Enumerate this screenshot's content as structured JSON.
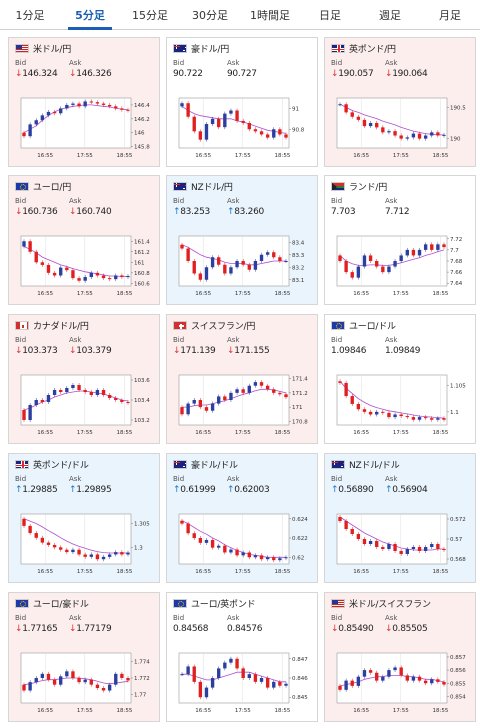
{
  "tabs": [
    {
      "label": "1分足",
      "active": false
    },
    {
      "label": "5分足",
      "active": true
    },
    {
      "label": "15分足",
      "active": false
    },
    {
      "label": "30分足",
      "active": false
    },
    {
      "label": "1時間足",
      "active": false
    },
    {
      "label": "日足",
      "active": false
    },
    {
      "label": "週足",
      "active": false
    },
    {
      "label": "月足",
      "active": false
    }
  ],
  "bid_label": "Bid",
  "ask_label": "Ask",
  "colors": {
    "up": "#1b78c7",
    "down": "#d33333",
    "candle_up": "#2a3f9e",
    "candle_down": "#e02020",
    "ma": "#b04dd0"
  },
  "pairs": [
    {
      "name": "米ドル/円",
      "flag": "us-flag-icon",
      "trend": "down",
      "bid": "146.324",
      "ask": "146.326",
      "bid_arrow": "↓",
      "ask_arrow": "↓",
      "x_ticks": [
        "16:55",
        "17:55",
        "18:55"
      ],
      "y_ticks": [
        "146.4",
        "146.2",
        "146",
        "145.8"
      ],
      "y_tick_values": [
        146.4,
        146.2,
        146.0,
        145.8
      ],
      "y_range": [
        145.78,
        146.5
      ],
      "close": [
        145.95,
        146.12,
        146.18,
        146.25,
        146.3,
        146.28,
        146.35,
        146.4,
        146.42,
        146.38,
        146.45,
        146.44,
        146.42,
        146.4,
        146.38,
        146.35,
        146.33,
        146.32
      ],
      "ma": [
        146.0,
        146.05,
        146.1,
        146.18,
        146.25,
        146.3,
        146.34,
        146.36,
        146.38,
        146.39,
        146.4,
        146.4,
        146.39,
        146.38,
        146.37,
        146.35,
        146.34,
        146.33
      ]
    },
    {
      "name": "豪ドル/円",
      "flag": "au-flag-icon",
      "trend": "flat",
      "bid": "90.722",
      "ask": "90.727",
      "bid_arrow": "",
      "ask_arrow": "",
      "x_ticks": [
        "16:55",
        "17:55",
        "18:55"
      ],
      "y_ticks": [
        "91",
        "90.8"
      ],
      "y_tick_values": [
        91.0,
        90.8
      ],
      "y_range": [
        90.62,
        91.1
      ],
      "close": [
        91.05,
        90.92,
        90.78,
        90.7,
        90.85,
        90.9,
        90.82,
        90.95,
        90.98,
        90.88,
        90.86,
        90.8,
        90.78,
        90.75,
        90.72,
        90.8,
        90.75,
        90.72
      ],
      "ma": [
        91.02,
        90.98,
        90.95,
        90.93,
        90.92,
        90.91,
        90.9,
        90.9,
        90.9,
        90.88,
        90.87,
        90.85,
        90.83,
        90.81,
        90.79,
        90.78,
        90.77,
        90.76
      ]
    },
    {
      "name": "英ポンド/円",
      "flag": "uk-flag-icon",
      "trend": "down",
      "bid": "190.057",
      "ask": "190.064",
      "bid_arrow": "↓",
      "ask_arrow": "↓",
      "x_ticks": [
        "16:55",
        "17:55",
        "18:55"
      ],
      "y_ticks": [
        "190.5",
        "190"
      ],
      "y_tick_values": [
        190.5,
        190.0
      ],
      "y_range": [
        189.85,
        190.65
      ],
      "close": [
        190.55,
        190.42,
        190.35,
        190.3,
        190.2,
        190.25,
        190.18,
        190.1,
        190.12,
        190.05,
        190.0,
        190.02,
        190.08,
        190.0,
        190.05,
        190.1,
        190.05,
        190.06
      ],
      "ma": [
        190.55,
        190.5,
        190.45,
        190.42,
        190.38,
        190.35,
        190.32,
        190.28,
        190.25,
        190.22,
        190.18,
        190.15,
        190.12,
        190.1,
        190.08,
        190.07,
        190.06,
        190.06
      ]
    },
    {
      "name": "ユーロ/円",
      "flag": "eu-flag-icon",
      "trend": "down",
      "bid": "160.736",
      "ask": "160.740",
      "bid_arrow": "↓",
      "ask_arrow": "↓",
      "x_ticks": [
        "16:55",
        "17:55",
        "18:55"
      ],
      "y_ticks": [
        "161.4",
        "161.2",
        "161",
        "160.8",
        "160.6"
      ],
      "y_tick_values": [
        161.4,
        161.2,
        161.0,
        160.8,
        160.6
      ],
      "y_range": [
        160.55,
        161.5
      ],
      "close": [
        161.4,
        161.2,
        161.0,
        160.95,
        160.8,
        160.75,
        160.9,
        160.85,
        160.7,
        160.65,
        160.72,
        160.8,
        160.75,
        160.7,
        160.68,
        160.75,
        160.72,
        160.74
      ],
      "ma": [
        161.3,
        161.25,
        161.18,
        161.1,
        161.05,
        161.0,
        160.95,
        160.92,
        160.88,
        160.85,
        160.82,
        160.8,
        160.78,
        160.76,
        160.74,
        160.74,
        160.73,
        160.73
      ]
    },
    {
      "name": "NZドル/円",
      "flag": "nz-flag-icon",
      "trend": "up",
      "bid": "83.253",
      "ask": "83.260",
      "bid_arrow": "↑",
      "ask_arrow": "↑",
      "x_ticks": [
        "16:55",
        "17:55",
        "18:55"
      ],
      "y_ticks": [
        "83.4",
        "83.3",
        "83.2",
        "83.1"
      ],
      "y_tick_values": [
        83.4,
        83.3,
        83.2,
        83.1
      ],
      "y_range": [
        83.05,
        83.45
      ],
      "close": [
        83.35,
        83.25,
        83.15,
        83.1,
        83.2,
        83.28,
        83.22,
        83.15,
        83.2,
        83.25,
        83.22,
        83.18,
        83.25,
        83.3,
        83.32,
        83.28,
        83.25,
        83.25
      ],
      "ma": [
        83.38,
        83.36,
        83.33,
        83.3,
        83.28,
        83.27,
        83.26,
        83.24,
        83.23,
        83.23,
        83.23,
        83.22,
        83.22,
        83.23,
        83.24,
        83.25,
        83.25,
        83.25
      ]
    },
    {
      "name": "ランド/円",
      "flag": "za-flag-icon",
      "trend": "flat",
      "bid": "7.703",
      "ask": "7.712",
      "bid_arrow": "",
      "ask_arrow": "",
      "x_ticks": [
        "16:55",
        "17:55",
        "18:55"
      ],
      "y_ticks": [
        "7.72",
        "7.7",
        "7.68",
        "7.66",
        "7.64"
      ],
      "y_tick_values": [
        7.72,
        7.7,
        7.68,
        7.66,
        7.64
      ],
      "y_range": [
        7.635,
        7.725
      ],
      "close": [
        7.68,
        7.66,
        7.65,
        7.67,
        7.69,
        7.68,
        7.67,
        7.66,
        7.67,
        7.68,
        7.69,
        7.7,
        7.69,
        7.7,
        7.71,
        7.7,
        7.71,
        7.705
      ],
      "ma": [
        7.69,
        7.68,
        7.675,
        7.672,
        7.672,
        7.673,
        7.673,
        7.672,
        7.672,
        7.674,
        7.677,
        7.68,
        7.683,
        7.686,
        7.69,
        7.693,
        7.697,
        7.7
      ]
    },
    {
      "name": "カナダドル/円",
      "flag": "ca-flag-icon",
      "trend": "down",
      "bid": "103.373",
      "ask": "103.379",
      "bid_arrow": "↓",
      "ask_arrow": "↓",
      "x_ticks": [
        "16:55",
        "17:55",
        "18:55"
      ],
      "y_ticks": [
        "103.6",
        "103.4",
        "103.2"
      ],
      "y_tick_values": [
        103.6,
        103.4,
        103.2
      ],
      "y_range": [
        103.15,
        103.65
      ],
      "close": [
        103.2,
        103.35,
        103.4,
        103.38,
        103.45,
        103.5,
        103.48,
        103.52,
        103.55,
        103.5,
        103.48,
        103.45,
        103.5,
        103.45,
        103.42,
        103.4,
        103.38,
        103.37
      ],
      "ma": [
        103.3,
        103.32,
        103.35,
        103.38,
        103.4,
        103.43,
        103.45,
        103.47,
        103.48,
        103.49,
        103.49,
        103.48,
        103.47,
        103.46,
        103.44,
        103.42,
        103.4,
        103.39
      ]
    },
    {
      "name": "スイスフラン/円",
      "flag": "ch-flag-icon",
      "trend": "down",
      "bid": "171.139",
      "ask": "171.155",
      "bid_arrow": "↓",
      "ask_arrow": "↓",
      "x_ticks": [
        "16:55",
        "17:55",
        "18:55"
      ],
      "y_ticks": [
        "171.4",
        "171.2",
        "171",
        "170.8"
      ],
      "y_tick_values": [
        171.4,
        171.2,
        171.0,
        170.8
      ],
      "y_range": [
        170.75,
        171.45
      ],
      "close": [
        170.9,
        171.05,
        171.1,
        171.0,
        170.95,
        171.05,
        171.15,
        171.1,
        171.2,
        171.25,
        171.2,
        171.3,
        171.35,
        171.3,
        171.25,
        171.2,
        171.18,
        171.14
      ],
      "ma": [
        171.0,
        171.0,
        171.02,
        171.03,
        171.03,
        171.05,
        171.07,
        171.09,
        171.12,
        171.15,
        171.18,
        171.2,
        171.23,
        171.25,
        171.25,
        171.24,
        171.22,
        171.2
      ]
    },
    {
      "name": "ユーロ/ドル",
      "flag": "eu-flag-icon",
      "trend": "flat",
      "bid": "1.09846",
      "ask": "1.09849",
      "bid_arrow": "",
      "ask_arrow": "",
      "x_ticks": [
        "16:55",
        "17:55",
        "18:55"
      ],
      "y_ticks": [
        "1.105",
        "1.1"
      ],
      "y_tick_values": [
        1.105,
        1.1
      ],
      "y_range": [
        1.0975,
        1.107
      ],
      "close": [
        1.1055,
        1.103,
        1.1015,
        1.1005,
        1.1,
        1.0995,
        1.1,
        1.0998,
        1.099,
        1.0995,
        1.0992,
        1.099,
        1.0985,
        1.099,
        1.0988,
        1.0985,
        1.0988,
        1.0985
      ],
      "ma": [
        1.1058,
        1.1045,
        1.1035,
        1.1025,
        1.1018,
        1.1012,
        1.1008,
        1.1005,
        1.1002,
        1.1,
        1.0998,
        1.0996,
        1.0994,
        1.0992,
        1.0991,
        1.099,
        1.0989,
        1.0988
      ]
    },
    {
      "name": "英ポンド/ドル",
      "flag": "uk-flag-icon",
      "trend": "up",
      "bid": "1.29885",
      "ask": "1.29895",
      "bid_arrow": "↑",
      "ask_arrow": "↑",
      "x_ticks": [
        "16:55",
        "17:55",
        "18:55"
      ],
      "y_ticks": [
        "1.305",
        "1.3"
      ],
      "y_tick_values": [
        1.305,
        1.3
      ],
      "y_range": [
        1.2965,
        1.307
      ],
      "close": [
        1.3045,
        1.303,
        1.302,
        1.301,
        1.3005,
        1.3,
        1.2995,
        1.299,
        1.2995,
        1.2985,
        1.298,
        1.2985,
        1.2975,
        1.298,
        1.2985,
        1.299,
        1.2985,
        1.2989
      ],
      "ma": [
        1.306,
        1.3055,
        1.305,
        1.3043,
        1.3035,
        1.3028,
        1.302,
        1.3013,
        1.3007,
        1.3002,
        1.2998,
        1.2994,
        1.2991,
        1.2989,
        1.2988,
        1.2988,
        1.2988,
        1.2988
      ]
    },
    {
      "name": "豪ドル/ドル",
      "flag": "au-flag-icon",
      "trend": "up",
      "bid": "0.61999",
      "ask": "0.62003",
      "bid_arrow": "↑",
      "ask_arrow": "↑",
      "x_ticks": [
        "16:55",
        "17:55",
        "18:55"
      ],
      "y_ticks": [
        "0.624",
        "0.622",
        "0.62"
      ],
      "y_tick_values": [
        0.624,
        0.622,
        0.62
      ],
      "y_range": [
        0.6193,
        0.6245
      ],
      "close": [
        0.6235,
        0.6225,
        0.622,
        0.6215,
        0.6218,
        0.621,
        0.6212,
        0.6205,
        0.6208,
        0.6202,
        0.6205,
        0.62,
        0.6202,
        0.6198,
        0.62,
        0.6197,
        0.6199,
        0.62
      ],
      "ma": [
        0.6238,
        0.6235,
        0.6231,
        0.6227,
        0.6224,
        0.622,
        0.6217,
        0.6213,
        0.621,
        0.6207,
        0.6205,
        0.6203,
        0.6202,
        0.6201,
        0.62,
        0.62,
        0.62,
        0.62
      ]
    },
    {
      "name": "NZドル/ドル",
      "flag": "nz-flag-icon",
      "trend": "up",
      "bid": "0.56890",
      "ask": "0.56904",
      "bid_arrow": "↑",
      "ask_arrow": "↑",
      "x_ticks": [
        "16:55",
        "17:55",
        "18:55"
      ],
      "y_ticks": [
        "0.572",
        "0.57",
        "0.568"
      ],
      "y_tick_values": [
        0.572,
        0.57,
        0.568
      ],
      "y_range": [
        0.5675,
        0.5725
      ],
      "close": [
        0.5718,
        0.571,
        0.5705,
        0.57,
        0.5695,
        0.5698,
        0.5692,
        0.569,
        0.5695,
        0.5688,
        0.5685,
        0.569,
        0.5692,
        0.5688,
        0.5692,
        0.5695,
        0.569,
        0.5689
      ],
      "ma": [
        0.5722,
        0.5718,
        0.5714,
        0.571,
        0.5706,
        0.5703,
        0.57,
        0.5697,
        0.5695,
        0.5693,
        0.5691,
        0.569,
        0.5689,
        0.5689,
        0.5689,
        0.5689,
        0.569,
        0.569
      ]
    },
    {
      "name": "ユーロ/豪ドル",
      "flag": "eu-flag-icon",
      "trend": "down",
      "bid": "1.77165",
      "ask": "1.77179",
      "bid_arrow": "↓",
      "ask_arrow": "↓",
      "x_ticks": [
        "16:55",
        "17:55",
        "18:55"
      ],
      "y_ticks": [
        "1.774",
        "1.772",
        "1.77"
      ],
      "y_tick_values": [
        1.774,
        1.772,
        1.77
      ],
      "y_range": [
        1.769,
        1.775
      ],
      "close": [
        1.7705,
        1.7715,
        1.772,
        1.7725,
        1.7718,
        1.7712,
        1.7722,
        1.7728,
        1.772,
        1.7715,
        1.7718,
        1.7712,
        1.7708,
        1.7705,
        1.7712,
        1.7725,
        1.772,
        1.7717
      ],
      "ma": [
        1.7712,
        1.7713,
        1.7715,
        1.7717,
        1.7718,
        1.7718,
        1.7719,
        1.772,
        1.772,
        1.772,
        1.7719,
        1.7718,
        1.7716,
        1.7714,
        1.7713,
        1.7714,
        1.7715,
        1.7716
      ]
    },
    {
      "name": "ユーロ/英ポンド",
      "flag": "eu-flag-icon",
      "trend": "flat",
      "bid": "0.84568",
      "ask": "0.84576",
      "bid_arrow": "",
      "ask_arrow": "",
      "x_ticks": [
        "16:55",
        "17:55",
        "18:55"
      ],
      "y_ticks": [
        "0.847",
        "0.846",
        "0.845"
      ],
      "y_tick_values": [
        0.847,
        0.846,
        0.845
      ],
      "y_range": [
        0.8447,
        0.8473
      ],
      "close": [
        0.8462,
        0.8466,
        0.8458,
        0.845,
        0.8455,
        0.846,
        0.8465,
        0.8468,
        0.847,
        0.8465,
        0.846,
        0.8462,
        0.8458,
        0.846,
        0.8455,
        0.8458,
        0.8456,
        0.8457
      ],
      "ma": [
        0.8462,
        0.8462,
        0.8461,
        0.846,
        0.8459,
        0.8459,
        0.846,
        0.8461,
        0.8462,
        0.8463,
        0.8463,
        0.8463,
        0.8462,
        0.8461,
        0.846,
        0.8459,
        0.8458,
        0.8458
      ]
    },
    {
      "name": "米ドル/スイスフラン",
      "flag": "us-flag-icon",
      "trend": "down",
      "bid": "0.85490",
      "ask": "0.85505",
      "bid_arrow": "↓",
      "ask_arrow": "↓",
      "x_ticks": [
        "16:55",
        "17:55",
        "18:55"
      ],
      "y_ticks": [
        "0.857",
        "0.856",
        "0.855",
        "0.854"
      ],
      "y_tick_values": [
        0.857,
        0.856,
        0.855,
        0.854
      ],
      "y_range": [
        0.8535,
        0.8573
      ],
      "close": [
        0.8545,
        0.8552,
        0.8548,
        0.8555,
        0.856,
        0.8558,
        0.8552,
        0.8555,
        0.856,
        0.8562,
        0.8556,
        0.8552,
        0.8555,
        0.8552,
        0.855,
        0.8553,
        0.8551,
        0.8549
      ],
      "ma": [
        0.8548,
        0.8549,
        0.855,
        0.8551,
        0.8553,
        0.8554,
        0.8555,
        0.8555,
        0.8556,
        0.8556,
        0.8556,
        0.8555,
        0.8555,
        0.8554,
        0.8553,
        0.8553,
        0.8552,
        0.8551
      ]
    }
  ]
}
